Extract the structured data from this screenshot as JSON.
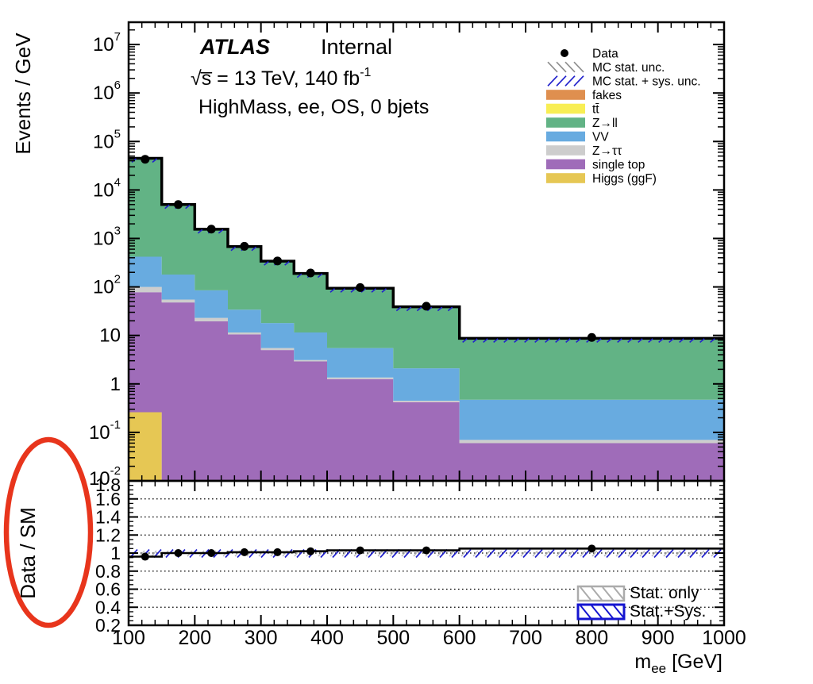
{
  "page": {
    "background": "#ffffff"
  },
  "annotations": {
    "atlas": {
      "experiment": "ATLAS",
      "status": "Internal",
      "energy_lumi": "√s̅ = 13 TeV, 140 fb",
      "lumi_exponent": "-1",
      "selection": "HighMass, ee, OS, 0 bjets"
    },
    "red_circle": {
      "color": "#e8351c"
    }
  },
  "top_panel": {
    "y_title": "Events / GeV",
    "y_tick_labels": [
      "10^7",
      "10^6",
      "10^5",
      "10^4",
      "10^3",
      "10^2",
      "10",
      "1",
      "10^-1",
      "10^-2"
    ],
    "legend": [
      {
        "label": "Data",
        "marker": "dot"
      },
      {
        "label": "MC stat. unc.",
        "marker": "hatch-gray"
      },
      {
        "label": "MC stat. + sys. unc.",
        "marker": "hatch-blue"
      },
      {
        "label": "fakes",
        "marker": "box",
        "color": "#DF8F4F"
      },
      {
        "label": "tt̄",
        "marker": "box",
        "color": "#F8EE54"
      },
      {
        "label": "Z→ll",
        "marker": "box",
        "color": "#62B385"
      },
      {
        "label": "VV",
        "marker": "box",
        "color": "#68ABE0"
      },
      {
        "label": "Z→ττ",
        "marker": "box",
        "color": "#CDCDCD"
      },
      {
        "label": "single top",
        "marker": "box",
        "color": "#9F6CB9"
      },
      {
        "label": "Higgs (ggF)",
        "marker": "box",
        "color": "#E6C754"
      }
    ]
  },
  "ratio_panel": {
    "y_title": "Data / SM",
    "y_tick_labels": [
      "1.8",
      "1.6",
      "1.4",
      "1.2",
      "1",
      "0.8",
      "0.6",
      "0.4",
      "0.2"
    ],
    "x_tick_labels": [
      "100",
      "200",
      "300",
      "400",
      "500",
      "600",
      "700",
      "800",
      "900",
      "1000"
    ],
    "gridlines": [
      0.4,
      0.6,
      0.8,
      1.0,
      1.2,
      1.4,
      1.6
    ],
    "x_title": {
      "main": "m",
      "sub": "ee",
      "unit": " [GeV]"
    },
    "legend": [
      {
        "label": "Stat. only",
        "style": "hatch-gray-box",
        "color": "#ababab"
      },
      {
        "label": "Stat.+Sys.",
        "style": "hatch-blue-box",
        "color": "#1515d0"
      }
    ]
  },
  "chart_data": {
    "type": "stacked-histogram-with-ratio",
    "x": {
      "label": "m_ee [GeV]",
      "scale": "linear",
      "range": [
        100,
        1000
      ],
      "bin_edges": [
        100,
        150,
        200,
        250,
        300,
        350,
        400,
        500,
        600,
        1000
      ]
    },
    "y_top": {
      "label": "Events / GeV",
      "scale": "log",
      "range": [
        0.01,
        30000000
      ]
    },
    "y_ratio": {
      "label": "Data / SM",
      "scale": "linear",
      "range": [
        0.2,
        1.8
      ]
    },
    "mc_total_per_gev": [
      45000,
      5000,
      1550,
      680,
      340,
      190,
      94,
      39,
      8.7
    ],
    "stack_cumulative_tops": [
      {
        "name": "Higgs (ggF)",
        "color": "#E6C754",
        "tops": [
          0.26,
          0.01,
          0.01,
          0.01,
          0.01,
          0.01,
          0.01,
          0.01,
          0.01
        ]
      },
      {
        "name": "single top",
        "color": "#9F6CB9",
        "tops": [
          78,
          48,
          19.5,
          10.5,
          5,
          2.9,
          1.26,
          0.42,
          0.06
        ]
      },
      {
        "name": "Z→ττ",
        "color": "#CDCDCD",
        "tops": [
          100,
          55,
          23,
          11.5,
          5.5,
          3.1,
          1.35,
          0.45,
          0.07
        ]
      },
      {
        "name": "VV",
        "color": "#68ABE0",
        "tops": [
          420,
          180,
          85,
          34,
          18,
          11.5,
          5.5,
          2.1,
          0.47
        ]
      },
      {
        "name": "Z→ll",
        "color": "#62B385",
        "tops": [
          45000,
          5000,
          1550,
          680,
          340,
          190,
          94,
          39,
          8.7
        ]
      }
    ],
    "series_below_visible_threshold": [
      "tt̄",
      "fakes"
    ],
    "data_points": {
      "x": [
        125,
        175,
        225,
        275,
        325,
        375,
        450,
        550,
        800
      ],
      "y_per_gev": [
        43000,
        5000,
        1555,
        690,
        344,
        194,
        97,
        40,
        9.1
      ]
    },
    "ratio_points": [
      0.96,
      1.0,
      1.0,
      1.01,
      1.01,
      1.02,
      1.03,
      1.03,
      1.05
    ],
    "uncertainty_band": {
      "center": 1.0,
      "stat_sys_halfwidth": 0.04,
      "stat_halfwidth": 0.02
    },
    "band_color": "#2222cc",
    "stat_band_color": "#bbbbbb"
  }
}
